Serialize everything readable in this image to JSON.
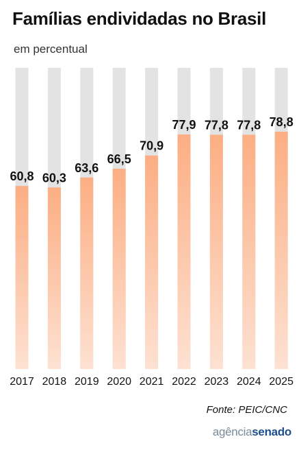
{
  "title": "Famílias endividadas no Brasil",
  "subtitle": "em percentual",
  "source": "Fonte: PEIC/CNC",
  "logo": {
    "part1": "agência",
    "part2": "senado"
  },
  "colors": {
    "bar_fill_top": "#fcae83",
    "bar_fill_bottom": "#fde1d2",
    "bar_background": "#e3e3e4",
    "logo_grey": "#7a8a99",
    "logo_blue": "#1f4e8c"
  },
  "chart_data": {
    "type": "bar",
    "title": "Famílias endividadas no Brasil",
    "subtitle": "em percentual",
    "categories": [
      "2017",
      "2018",
      "2019",
      "2020",
      "2021",
      "2022",
      "2023",
      "2024",
      "2025"
    ],
    "values": [
      60.8,
      60.3,
      63.6,
      66.5,
      70.9,
      77.9,
      77.8,
      77.8,
      78.8
    ],
    "value_labels": [
      "60,8",
      "60,3",
      "63,6",
      "66,5",
      "70,9",
      "77,9",
      "77,8",
      "77,8",
      "78,8"
    ],
    "ylim": [
      0,
      100
    ],
    "grid": false,
    "legend": "none"
  }
}
